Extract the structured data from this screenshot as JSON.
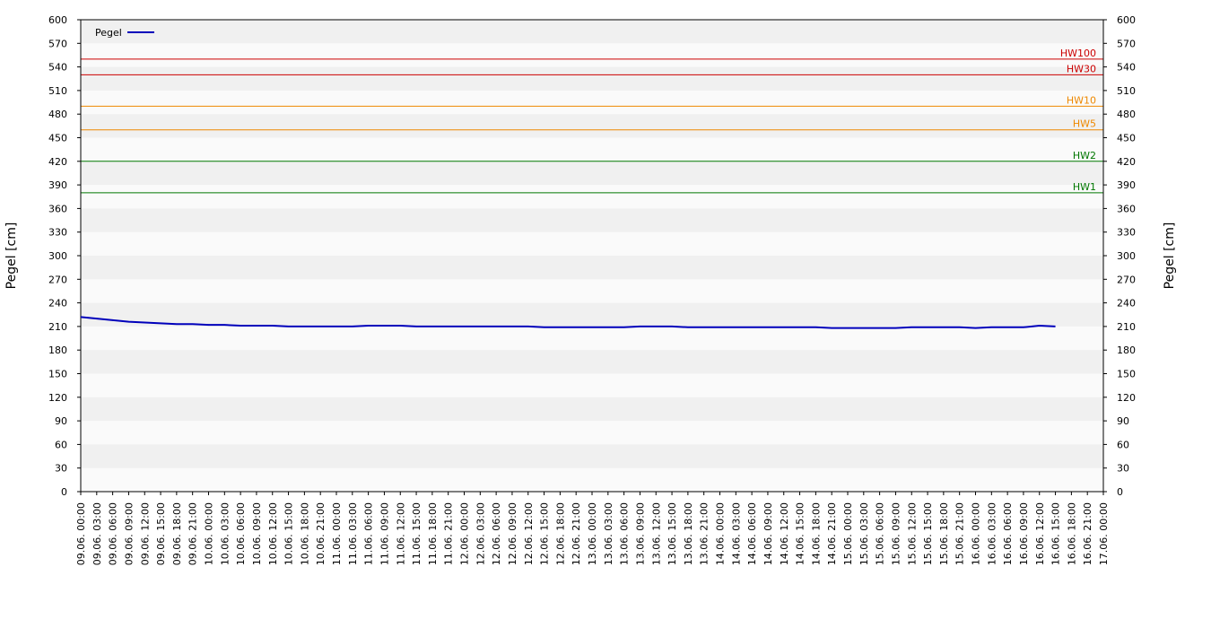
{
  "chart_data": {
    "type": "line",
    "ylabel": "Pegel [cm]",
    "x": [
      "09.06. 00:00",
      "09.06. 03:00",
      "09.06. 06:00",
      "09.06. 09:00",
      "09.06. 12:00",
      "09.06. 15:00",
      "09.06. 18:00",
      "09.06. 21:00",
      "10.06. 00:00",
      "10.06. 03:00",
      "10.06. 06:00",
      "10.06. 09:00",
      "10.06. 12:00",
      "10.06. 15:00",
      "10.06. 18:00",
      "10.06. 21:00",
      "11.06. 00:00",
      "11.06. 03:00",
      "11.06. 06:00",
      "11.06. 09:00",
      "11.06. 12:00",
      "11.06. 15:00",
      "11.06. 18:00",
      "11.06. 21:00",
      "12.06. 00:00",
      "12.06. 03:00",
      "12.06. 06:00",
      "12.06. 09:00",
      "12.06. 12:00",
      "12.06. 15:00",
      "12.06. 18:00",
      "12.06. 21:00",
      "13.06. 00:00",
      "13.06. 03:00",
      "13.06. 06:00",
      "13.06. 09:00",
      "13.06. 12:00",
      "13.06. 15:00",
      "13.06. 18:00",
      "13.06. 21:00",
      "14.06. 00:00",
      "14.06. 03:00",
      "14.06. 06:00",
      "14.06. 09:00",
      "14.06. 12:00",
      "14.06. 15:00",
      "14.06. 18:00",
      "14.06. 21:00",
      "15.06. 00:00",
      "15.06. 03:00",
      "15.06. 06:00",
      "15.06. 09:00",
      "15.06. 12:00",
      "15.06. 15:00",
      "15.06. 18:00",
      "15.06. 21:00",
      "16.06. 00:00",
      "16.06. 03:00",
      "16.06. 06:00",
      "16.06. 09:00",
      "16.06. 12:00",
      "16.06. 15:00",
      "16.06. 18:00",
      "16.06. 21:00",
      "17.06. 00:00"
    ],
    "series": [
      {
        "name": "Pegel",
        "color": "#0000bb",
        "values": [
          222,
          220,
          218,
          216,
          215,
          214,
          213,
          213,
          212,
          212,
          211,
          211,
          211,
          210,
          210,
          210,
          210,
          210,
          211,
          211,
          211,
          210,
          210,
          210,
          210,
          210,
          210,
          210,
          210,
          209,
          209,
          209,
          209,
          209,
          209,
          210,
          210,
          210,
          209,
          209,
          209,
          209,
          209,
          209,
          209,
          209,
          209,
          208,
          208,
          208,
          208,
          208,
          209,
          209,
          209,
          209,
          208,
          209,
          209,
          209,
          211,
          210,
          null,
          null,
          null
        ]
      }
    ],
    "thresholds": [
      {
        "name": "HW100",
        "value": 550,
        "color": "#cc0000"
      },
      {
        "name": "HW30",
        "value": 530,
        "color": "#cc0000"
      },
      {
        "name": "HW10",
        "value": 490,
        "color": "#ee8800"
      },
      {
        "name": "HW5",
        "value": 460,
        "color": "#ee8800"
      },
      {
        "name": "HW2",
        "value": 420,
        "color": "#007700"
      },
      {
        "name": "HW1",
        "value": 380,
        "color": "#007700"
      }
    ],
    "ylim": [
      0,
      600
    ],
    "yticks": [
      0,
      30,
      60,
      90,
      120,
      150,
      180,
      210,
      240,
      270,
      300,
      330,
      360,
      390,
      420,
      450,
      480,
      510,
      540,
      570,
      600
    ],
    "legend": "top-left"
  }
}
